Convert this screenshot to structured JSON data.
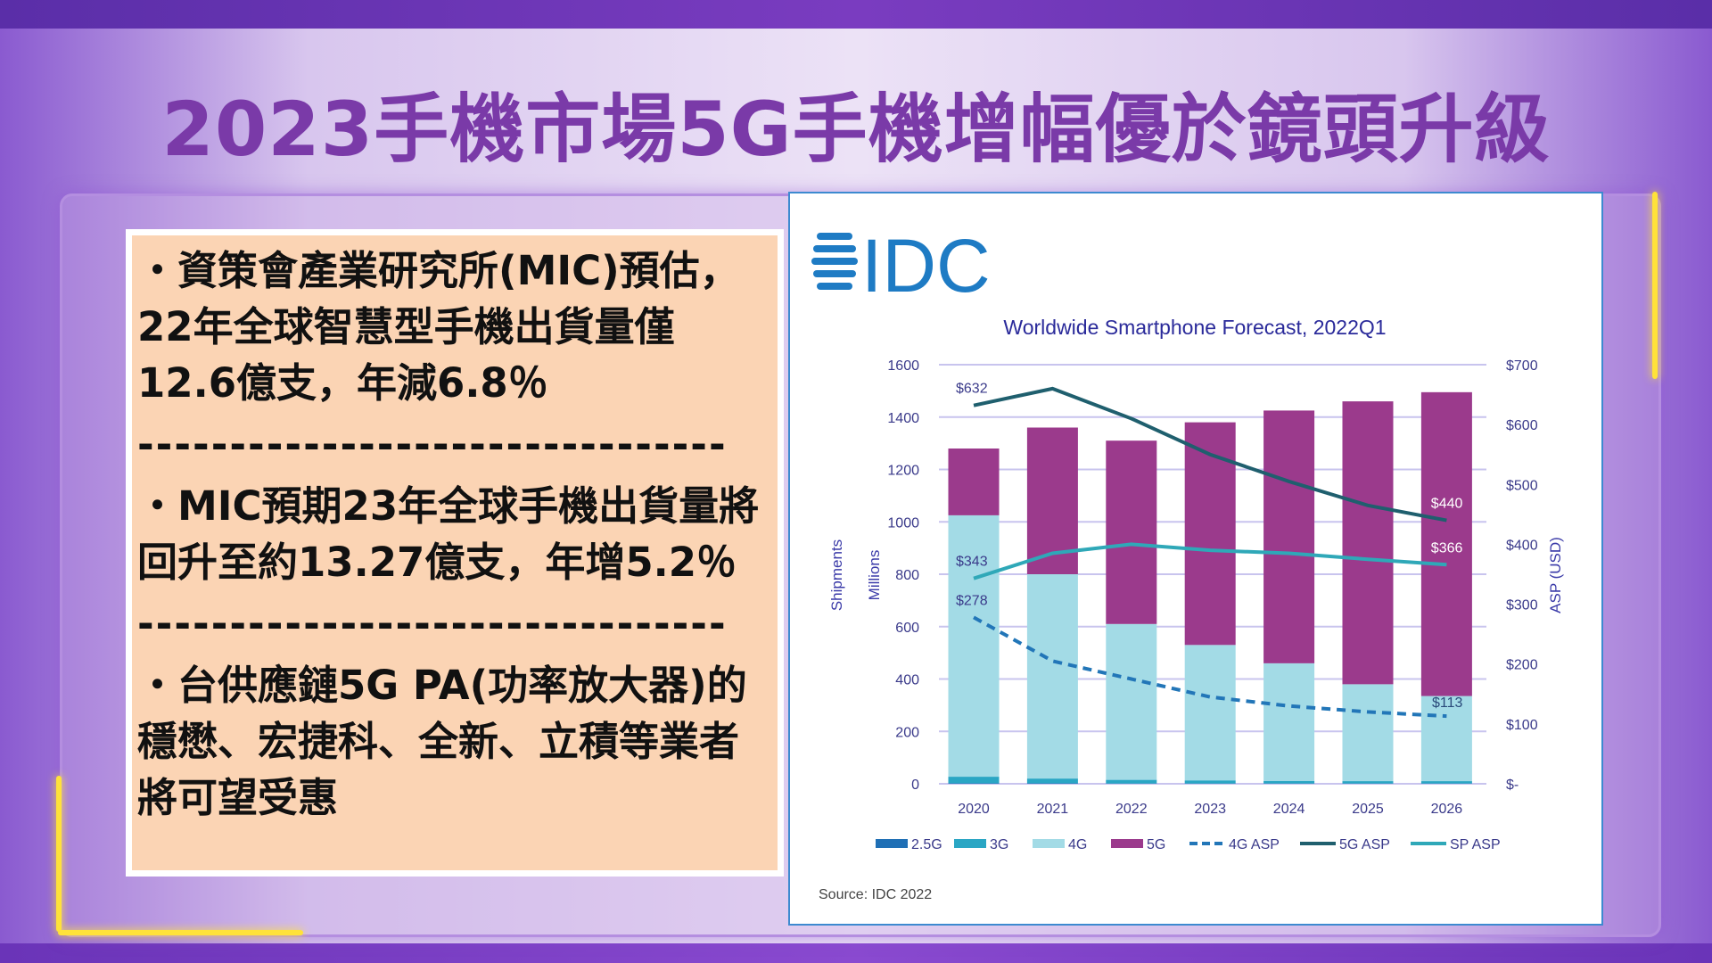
{
  "slide": {
    "title": "2023手機市場5G手機增幅優於鏡頭升級",
    "bullets": [
      {
        "text": "・資策會產業研究所(MIC)預估，22年全球智慧型手機出貨量僅12.6億支，年減6.8％"
      },
      {
        "text": "・MIC預期23年全球手機出貨量將回升至約13.27億支，年增5.2％"
      },
      {
        "text": "・台供應鏈5G PA(功率放大器)的穩懋、宏捷科、全新、立積等業者將可望受惠"
      }
    ],
    "divider": "--------------------------------"
  },
  "figure": {
    "logo": "IDC",
    "source": "Source: IDC 2022",
    "logo_color": "#1e7bc4"
  },
  "chart_data": {
    "type": "bar",
    "title": "Worldwide Smartphone Forecast, 2022Q1",
    "categories": [
      "2020",
      "2021",
      "2022",
      "2023",
      "2024",
      "2025",
      "2026"
    ],
    "ylabel": "Shipments",
    "ylabel2": "Millions",
    "y2label": "ASP (USD)",
    "ylim": [
      0,
      1600
    ],
    "y2lim": [
      0,
      700
    ],
    "yticks": [
      "0",
      "200",
      "400",
      "600",
      "800",
      "1000",
      "1200",
      "1400",
      "1600"
    ],
    "y2ticks": [
      "$-",
      "$100",
      "$200",
      "$300",
      "$400",
      "$500",
      "$600",
      "$700"
    ],
    "stacked": true,
    "series": [
      {
        "name": "2.5G",
        "kind": "bar",
        "color": "#1f6fb5",
        "values": [
          2,
          2,
          1,
          1,
          1,
          1,
          1
        ]
      },
      {
        "name": "3G",
        "kind": "bar",
        "color": "#2aa6c4",
        "values": [
          25,
          18,
          14,
          12,
          10,
          9,
          9
        ]
      },
      {
        "name": "4G",
        "kind": "bar",
        "color": "#a3dbe6",
        "values": [
          998,
          780,
          595,
          517,
          449,
          370,
          325
        ]
      },
      {
        "name": "5G",
        "kind": "bar",
        "color": "#9b3a8c",
        "values": [
          255,
          560,
          700,
          850,
          965,
          1080,
          1160
        ]
      },
      {
        "name": "4G ASP",
        "kind": "line",
        "dash": true,
        "color": "#2276b8",
        "axis": "right",
        "values": [
          278,
          205,
          175,
          145,
          130,
          120,
          113
        ]
      },
      {
        "name": "5G ASP",
        "kind": "line",
        "color": "#1f5f6e",
        "axis": "right",
        "values": [
          632,
          660,
          610,
          550,
          505,
          465,
          440
        ]
      },
      {
        "name": "SP ASP",
        "kind": "line",
        "color": "#2fa8b8",
        "axis": "right",
        "values": [
          343,
          385,
          400,
          390,
          385,
          375,
          366
        ]
      }
    ],
    "annotations": [
      "$632",
      "$343",
      "$278",
      "$440",
      "$366",
      "$113"
    ],
    "grid": true,
    "legend": "bottom"
  }
}
